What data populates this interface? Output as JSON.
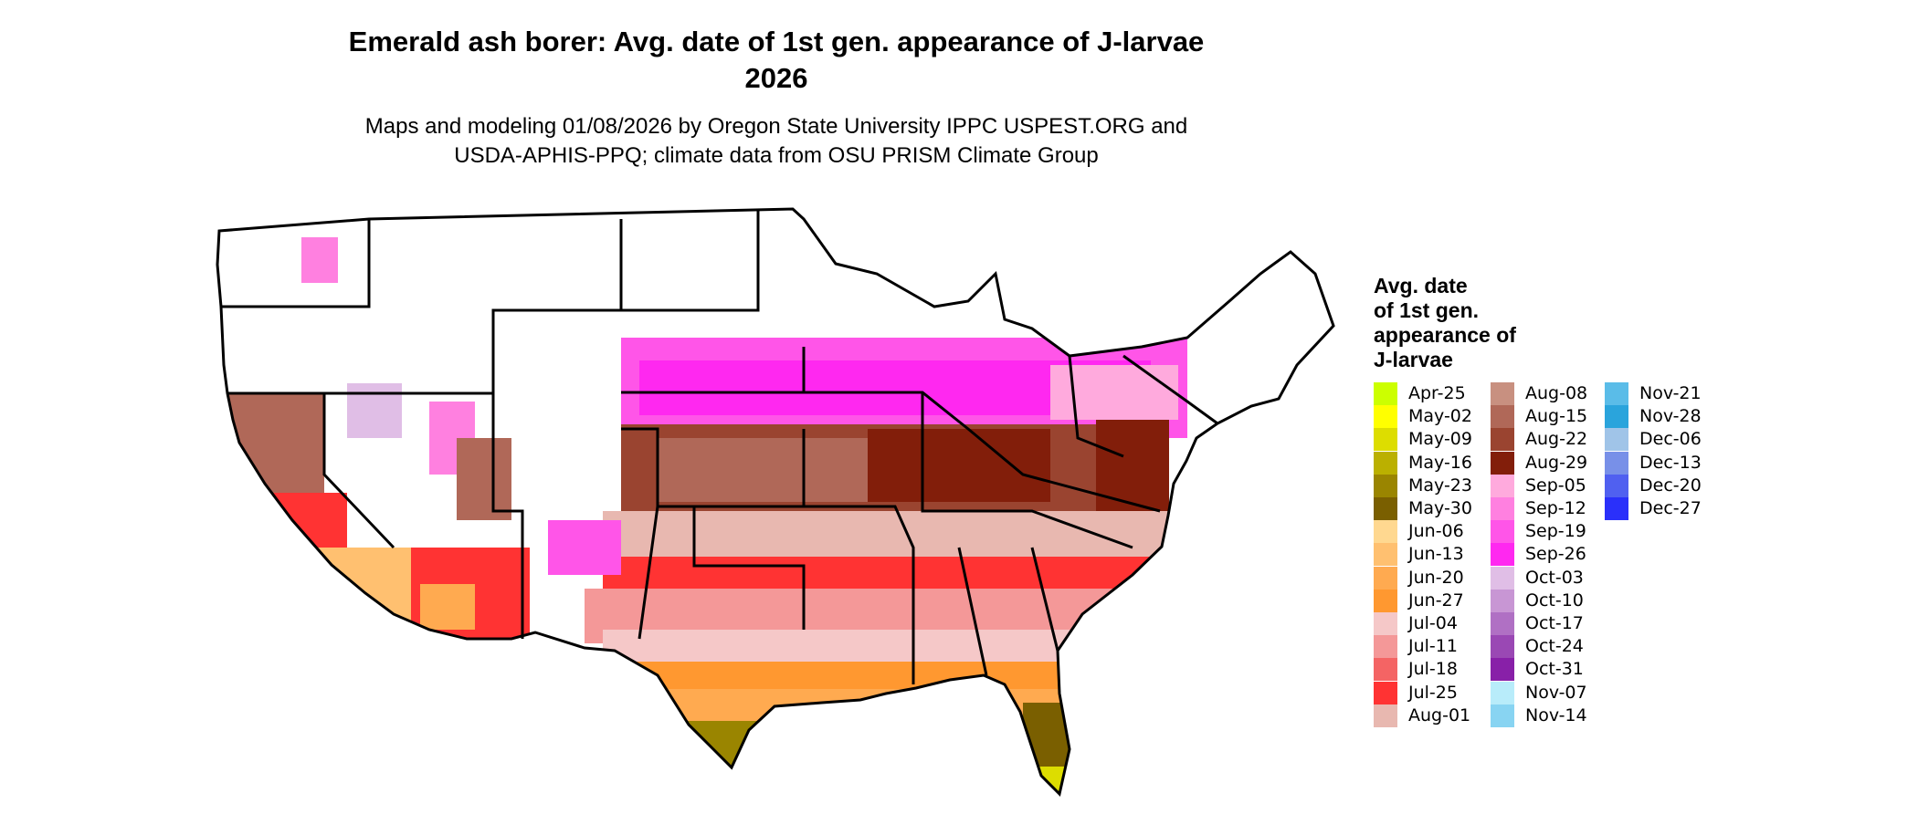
{
  "title": {
    "line1": "Emerald ash borer: Avg. date of 1st gen. appearance of J-larvae",
    "line2": "2026"
  },
  "subtitle": {
    "line1": "Maps and modeling 01/08/2026 by Oregon State University IPPC USPEST.ORG and",
    "line2": "USDA-APHIS-PPQ; climate data from OSU PRISM Climate Group"
  },
  "map": {
    "region": "Contiguous United States",
    "background_color": "#ffffff",
    "border_color": "#000000"
  },
  "legend": {
    "title_lines": [
      "Avg. date",
      "of 1st gen.",
      "appearance of",
      "J-larvae"
    ],
    "columns": [
      [
        {
          "label": "Apr-25",
          "color": "#ccff00"
        },
        {
          "label": "May-02",
          "color": "#ffff00"
        },
        {
          "label": "May-09",
          "color": "#dddd00"
        },
        {
          "label": "May-16",
          "color": "#bbb000"
        },
        {
          "label": "May-23",
          "color": "#9a8500"
        },
        {
          "label": "May-30",
          "color": "#7a5f00"
        },
        {
          "label": "Jun-06",
          "color": "#ffd890"
        },
        {
          "label": "Jun-13",
          "color": "#ffc070"
        },
        {
          "label": "Jun-20",
          "color": "#ffaa50"
        },
        {
          "label": "Jun-27",
          "color": "#ff9830"
        },
        {
          "label": "Jul-04",
          "color": "#f5c8c8"
        },
        {
          "label": "Jul-11",
          "color": "#f49898"
        },
        {
          "label": "Jul-18",
          "color": "#f46464"
        },
        {
          "label": "Jul-25",
          "color": "#ff3333"
        },
        {
          "label": "Aug-01",
          "color": "#e8b8b0"
        }
      ],
      [
        {
          "label": "Aug-08",
          "color": "#c89080"
        },
        {
          "label": "Aug-15",
          "color": "#b06858"
        },
        {
          "label": "Aug-22",
          "color": "#9a4430"
        },
        {
          "label": "Aug-29",
          "color": "#821e0a"
        },
        {
          "label": "Sep-05",
          "color": "#ffaadd"
        },
        {
          "label": "Sep-12",
          "color": "#ff80e0"
        },
        {
          "label": "Sep-19",
          "color": "#ff55e8"
        },
        {
          "label": "Sep-26",
          "color": "#ff28f0"
        },
        {
          "label": "Oct-03",
          "color": "#e0bee6"
        },
        {
          "label": "Oct-10",
          "color": "#c896d4"
        },
        {
          "label": "Oct-17",
          "color": "#b070c4"
        },
        {
          "label": "Oct-24",
          "color": "#9a48b4"
        },
        {
          "label": "Oct-31",
          "color": "#8820a8"
        },
        {
          "label": "Nov-07",
          "color": "#b8ecfa"
        },
        {
          "label": "Nov-14",
          "color": "#88d4f2"
        }
      ],
      [
        {
          "label": "Nov-21",
          "color": "#5abce8"
        },
        {
          "label": "Nov-28",
          "color": "#2aa4dc"
        },
        {
          "label": "Dec-06",
          "color": "#a0c4e8"
        },
        {
          "label": "Dec-13",
          "color": "#7890e8"
        },
        {
          "label": "Dec-20",
          "color": "#5060f0"
        },
        {
          "label": "Dec-27",
          "color": "#2a30fa"
        }
      ]
    ]
  }
}
